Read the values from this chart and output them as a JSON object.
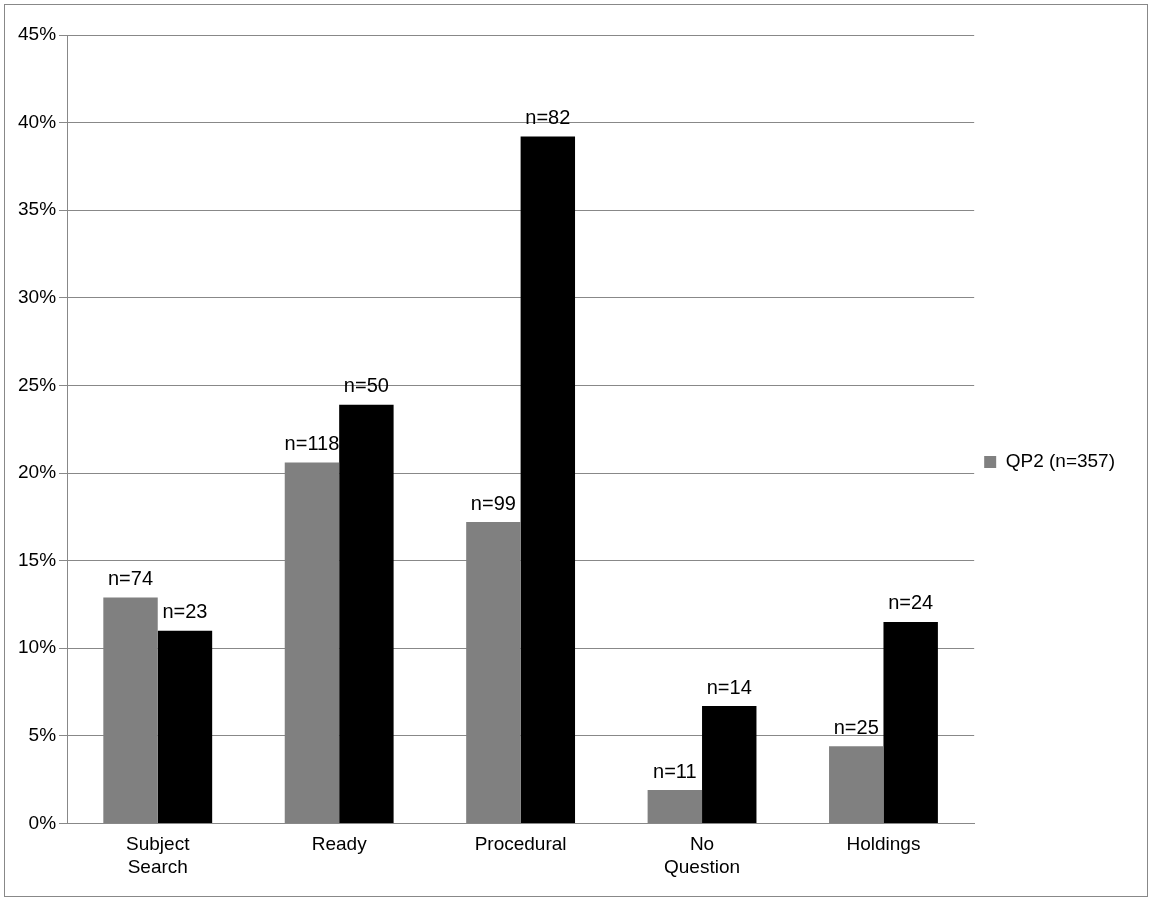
{
  "chart_data": {
    "type": "bar",
    "categories": [
      "Subject Search",
      "Ready",
      "Procedural",
      "No Question",
      "Holdings"
    ],
    "series": [
      {
        "name": "QP2 (n=357)",
        "color": "#808080",
        "values": [
          12.9,
          20.6,
          17.2,
          1.9,
          4.4
        ]
      },
      {
        "color": "#000000",
        "values": [
          11.0,
          23.9,
          39.2,
          6.7,
          11.5
        ]
      }
    ],
    "annotations": [
      {
        "text": "n=74",
        "x": "Subject Search",
        "y": 12.9
      },
      {
        "text": "n=23",
        "x": "Subject Search",
        "y": 11.0
      },
      {
        "text": "n=118",
        "x": "Ready",
        "y": 20.6
      },
      {
        "text": "n=50",
        "x": "Ready",
        "y": 23.9
      },
      {
        "text": "n=99",
        "x": "Procedural",
        "y": 17.2
      },
      {
        "text": "n=82",
        "x": "Procedural",
        "y": 39.2
      },
      {
        "text": "n=11",
        "x": "No Question",
        "y": 1.9
      },
      {
        "text": "n=14",
        "x": "No Question",
        "y": 6.7
      },
      {
        "text": "n=25",
        "x": "Holdings",
        "y": 4.4
      },
      {
        "text": "n=24",
        "x": "Holdings",
        "y": 11.5
      }
    ],
    "ylim": [
      0,
      45
    ],
    "yticks": [
      {
        "value": 0,
        "label": "0%"
      },
      {
        "value": 5,
        "label": "5%"
      },
      {
        "value": 10,
        "label": "10%"
      },
      {
        "value": 15,
        "label": "15%"
      },
      {
        "value": 20,
        "label": "20%"
      },
      {
        "value": 25,
        "label": "25%"
      },
      {
        "value": 30,
        "label": "30%"
      },
      {
        "value": 35,
        "label": "35%"
      },
      {
        "value": 40,
        "label": "40%"
      },
      {
        "value": 45,
        "label": "45%"
      }
    ],
    "grid": "y",
    "legend": "right"
  }
}
